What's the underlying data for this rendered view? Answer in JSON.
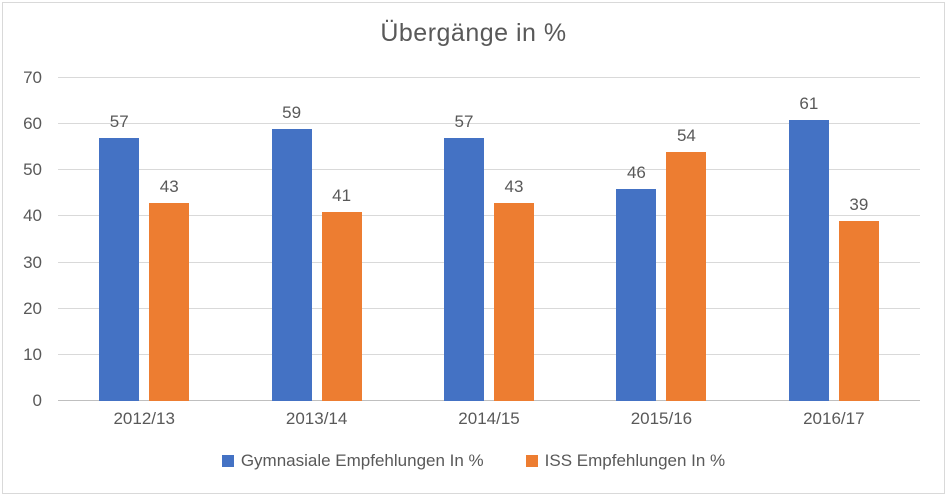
{
  "chart_data": {
    "type": "bar",
    "title": "Übergänge in %",
    "categories": [
      "2012/13",
      "2013/14",
      "2014/15",
      "2015/16",
      "2016/17"
    ],
    "series": [
      {
        "name": "Gymnasiale Empfehlungen In %",
        "color": "#4472C4",
        "values": [
          57,
          59,
          57,
          46,
          61
        ]
      },
      {
        "name": "ISS Empfehlungen In %",
        "color": "#ED7D31",
        "values": [
          43,
          41,
          43,
          54,
          39
        ]
      }
    ],
    "xlabel": "",
    "ylabel": "",
    "ylim": [
      0,
      70
    ],
    "yticks": [
      0,
      10,
      20,
      30,
      40,
      50,
      60,
      70
    ],
    "grid": "horizontal",
    "legend_position": "bottom"
  },
  "colors": {
    "text": "#595959",
    "gridline": "#d9d9d9",
    "axis_line": "#bfbfbf",
    "border": "#d9d9d9",
    "background": "#ffffff"
  }
}
